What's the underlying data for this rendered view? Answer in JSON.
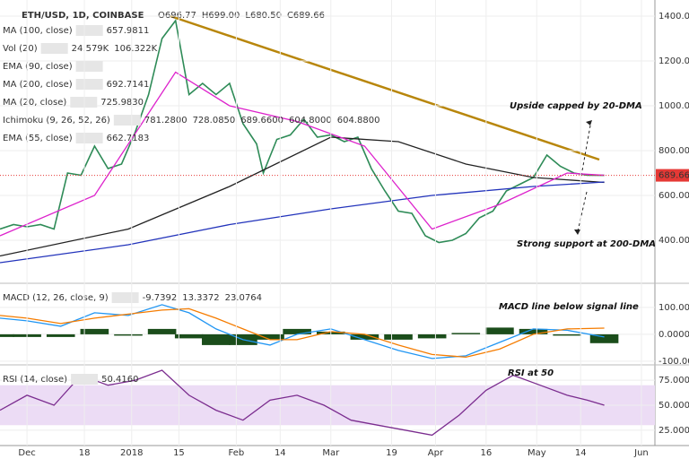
{
  "header": {
    "symbol": "ETH/USD, 1D, COINBASE",
    "ohlc": [
      "O696.77",
      "H699.00",
      "L680.50",
      "C689.66"
    ]
  },
  "annotations": [
    "Upside capped by 20-DMA",
    "Strong support at 200-DMA",
    "MACD line below signal line",
    "RSI at 50"
  ],
  "chart_data": [
    {
      "type": "line",
      "grid": true,
      "xlim": [
        -8,
        186
      ],
      "ylim": [
        212,
        1472
      ],
      "yticks": [
        {
          "value": 400,
          "label": "400.00"
        },
        {
          "value": 600,
          "label": "600.00"
        },
        {
          "value": 800,
          "label": "800.00"
        },
        {
          "value": 1000,
          "label": "1000.00"
        },
        {
          "value": 1200,
          "label": "1200.00"
        },
        {
          "value": 1400,
          "label": "1400.00"
        }
      ],
      "last": 689.66,
      "last_color": "#e53935",
      "legend": [
        {
          "label": "MA (100, close)",
          "values": [
            "657.9811"
          ],
          "color": "#111111"
        },
        {
          "label": "Vol (20)",
          "values": [
            "24.579K",
            "106.322K"
          ],
          "color": "#8b1a1a"
        },
        {
          "label": "EMA (90, close)",
          "color": "#888888"
        },
        {
          "label": "MA (200, close)",
          "values": [
            "692.7141"
          ],
          "color": "#1e2a8a"
        },
        {
          "label": "MA (20, close)",
          "values": [
            "725.9830"
          ],
          "color": "#a0195a"
        },
        {
          "label": "Ichimoku (9, 26, 52, 26)",
          "values": [
            "781.2800",
            "728.0850",
            "689.6600",
            "604.8000",
            "604.8800"
          ],
          "color": "#1c7c3c"
        },
        {
          "label": "EMA (55, close)",
          "values": [
            "662.7183"
          ],
          "color": "#1c5a7c"
        }
      ],
      "series": [
        {
          "color": "#2e8b57",
          "x": [
            -8,
            -4,
            0,
            4,
            8,
            12,
            16,
            20,
            24,
            28,
            32,
            36,
            40,
            44,
            48,
            52,
            56,
            60,
            64,
            68,
            70,
            74,
            78,
            82,
            86,
            90,
            94,
            98,
            102,
            106,
            110,
            114,
            118,
            122,
            126,
            130,
            134,
            138,
            142,
            146,
            150,
            154,
            158,
            162,
            166,
            171
          ],
          "values": [
            450,
            470,
            460,
            470,
            450,
            700,
            690,
            820,
            720,
            740,
            880,
            1050,
            1300,
            1380,
            1050,
            1100,
            1050,
            1100,
            920,
            830,
            700,
            850,
            870,
            940,
            860,
            870,
            840,
            860,
            720,
            620,
            530,
            520,
            420,
            390,
            400,
            430,
            500,
            530,
            620,
            650,
            680,
            780,
            730,
            700,
            690,
            689.66
          ]
        },
        {
          "color": "#222222",
          "x": [
            -8,
            30,
            60,
            90,
            110,
            130,
            150,
            171
          ],
          "values": [
            330,
            450,
            640,
            860,
            840,
            740,
            680,
            658
          ]
        },
        {
          "color": "#2233bb",
          "x": [
            -8,
            30,
            60,
            90,
            120,
            150,
            171
          ],
          "values": [
            300,
            380,
            470,
            540,
            600,
            640,
            660
          ]
        },
        {
          "color": "#dd22cc",
          "x": [
            -8,
            20,
            44,
            60,
            80,
            100,
            120,
            140,
            160,
            171
          ],
          "values": [
            420,
            600,
            1150,
            1000,
            930,
            820,
            450,
            560,
            700,
            690
          ]
        }
      ]
    },
    {
      "type": "macd",
      "grid": true,
      "xlim": [
        -8,
        186
      ],
      "ylim": [
        -107,
        183
      ],
      "yticks": [
        {
          "value": -100,
          "label": "-100.0000"
        },
        {
          "value": 0,
          "label": "0.0000"
        },
        {
          "value": 100,
          "label": "100.0000"
        }
      ],
      "legend": [
        {
          "label": "MACD (12, 26, close, 9)",
          "values": [
            "-9.7392",
            "13.3372",
            "23.0764"
          ],
          "color": "#1e6fc0"
        }
      ],
      "x": [
        -8,
        0,
        10,
        20,
        30,
        40,
        48,
        56,
        64,
        72,
        80,
        90,
        100,
        110,
        120,
        130,
        140,
        150,
        160,
        171
      ],
      "series": [
        {
          "color": "#2196f3",
          "values": [
            60,
            50,
            30,
            80,
            70,
            110,
            80,
            20,
            -20,
            -40,
            0,
            20,
            -20,
            -60,
            -90,
            -80,
            -30,
            20,
            15,
            -10
          ]
        },
        {
          "color": "#f57c00",
          "values": [
            70,
            60,
            40,
            60,
            75,
            90,
            95,
            60,
            20,
            -20,
            -20,
            10,
            0,
            -40,
            -75,
            -85,
            -55,
            0,
            20,
            23
          ]
        }
      ],
      "histogram": {
        "color": "#1b4d1b",
        "values": [
          -10,
          -10,
          -10,
          20,
          -5,
          20,
          -15,
          -40,
          -40,
          -20,
          20,
          10,
          -20,
          -20,
          -15,
          5,
          25,
          20,
          -5,
          -33
        ]
      }
    },
    {
      "type": "rsi",
      "grid": true,
      "xlim": [
        -8,
        186
      ],
      "ylim": [
        11.4,
        88.6
      ],
      "yticks": [
        {
          "value": 25,
          "label": "25.0000"
        },
        {
          "value": 50,
          "label": "50.0000"
        },
        {
          "value": 75,
          "label": "75.0000"
        }
      ],
      "band": [
        30,
        70
      ],
      "band_color": "#ecdcf5",
      "legend": [
        {
          "label": "RSI (14, close)",
          "values": [
            "50.4160"
          ],
          "color": "#7b3f8f"
        }
      ],
      "xticks": [
        {
          "value": 0,
          "label": "Dec"
        },
        {
          "value": 17,
          "label": "18"
        },
        {
          "value": 31,
          "label": "2018"
        },
        {
          "value": 45,
          "label": "15"
        },
        {
          "value": 62,
          "label": "Feb"
        },
        {
          "value": 75,
          "label": "14"
        },
        {
          "value": 90,
          "label": "Mar"
        },
        {
          "value": 108,
          "label": "19"
        },
        {
          "value": 121,
          "label": "Apr"
        },
        {
          "value": 136,
          "label": "16"
        },
        {
          "value": 151,
          "label": "May"
        },
        {
          "value": 164,
          "label": "14"
        },
        {
          "value": 182,
          "label": "Jun"
        }
      ],
      "series": [
        {
          "color": "#7b2d8f",
          "x": [
            -8,
            0,
            8,
            16,
            24,
            32,
            40,
            48,
            56,
            64,
            72,
            80,
            88,
            96,
            104,
            112,
            120,
            128,
            136,
            144,
            152,
            160,
            166,
            171
          ],
          "values": [
            45,
            60,
            50,
            80,
            70,
            75,
            85,
            60,
            45,
            35,
            55,
            60,
            50,
            35,
            30,
            25,
            20,
            40,
            65,
            80,
            70,
            60,
            55,
            50
          ]
        }
      ]
    }
  ]
}
